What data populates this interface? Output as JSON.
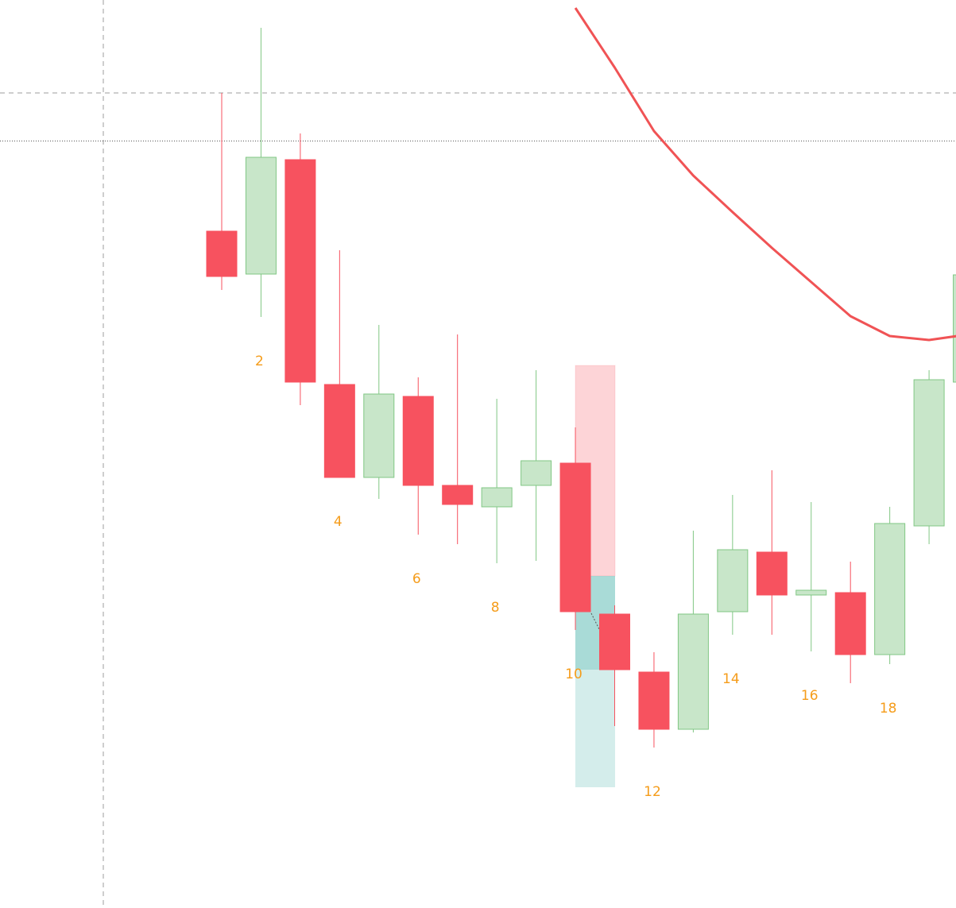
{
  "chart_data": {
    "type": "candlestick",
    "categories": [
      null,
      "2",
      null,
      "4",
      null,
      "6",
      null,
      "8",
      null,
      "10",
      null,
      "12",
      null,
      "14",
      null,
      "16",
      null,
      "18",
      null,
      null
    ],
    "open": [
      852,
      798,
      942,
      659,
      542,
      644,
      532,
      505,
      532,
      560,
      370,
      297,
      225,
      373,
      448,
      394,
      397,
      319,
      481,
      662
    ],
    "high": [
      1026,
      1108,
      975,
      828,
      734,
      668,
      722,
      641,
      677,
      605,
      381,
      322,
      475,
      520,
      551,
      511,
      436,
      505,
      677,
      803
    ],
    "low": [
      778,
      744,
      633,
      542,
      515,
      470,
      458,
      434,
      437,
      350,
      229,
      202,
      221,
      344,
      344,
      323,
      283,
      307,
      458,
      653
    ],
    "close": [
      795,
      945,
      662,
      542,
      647,
      532,
      508,
      529,
      563,
      373,
      300,
      225,
      370,
      451,
      394,
      400,
      319,
      484,
      665,
      797
    ],
    "up_color": "#c8e6c9",
    "up_border": "#81c784",
    "down_color": "#f7525f",
    "label_color": "#f59c1a",
    "lines": [
      {
        "color": "#f05355",
        "values": [
          null,
          null,
          null,
          null,
          null,
          null,
          null,
          null,
          null,
          1133,
          1058,
          978,
          922,
          876,
          831,
          788,
          745,
          720,
          715,
          722
        ]
      }
    ],
    "ylim": [
      0,
      1143
    ]
  }
}
